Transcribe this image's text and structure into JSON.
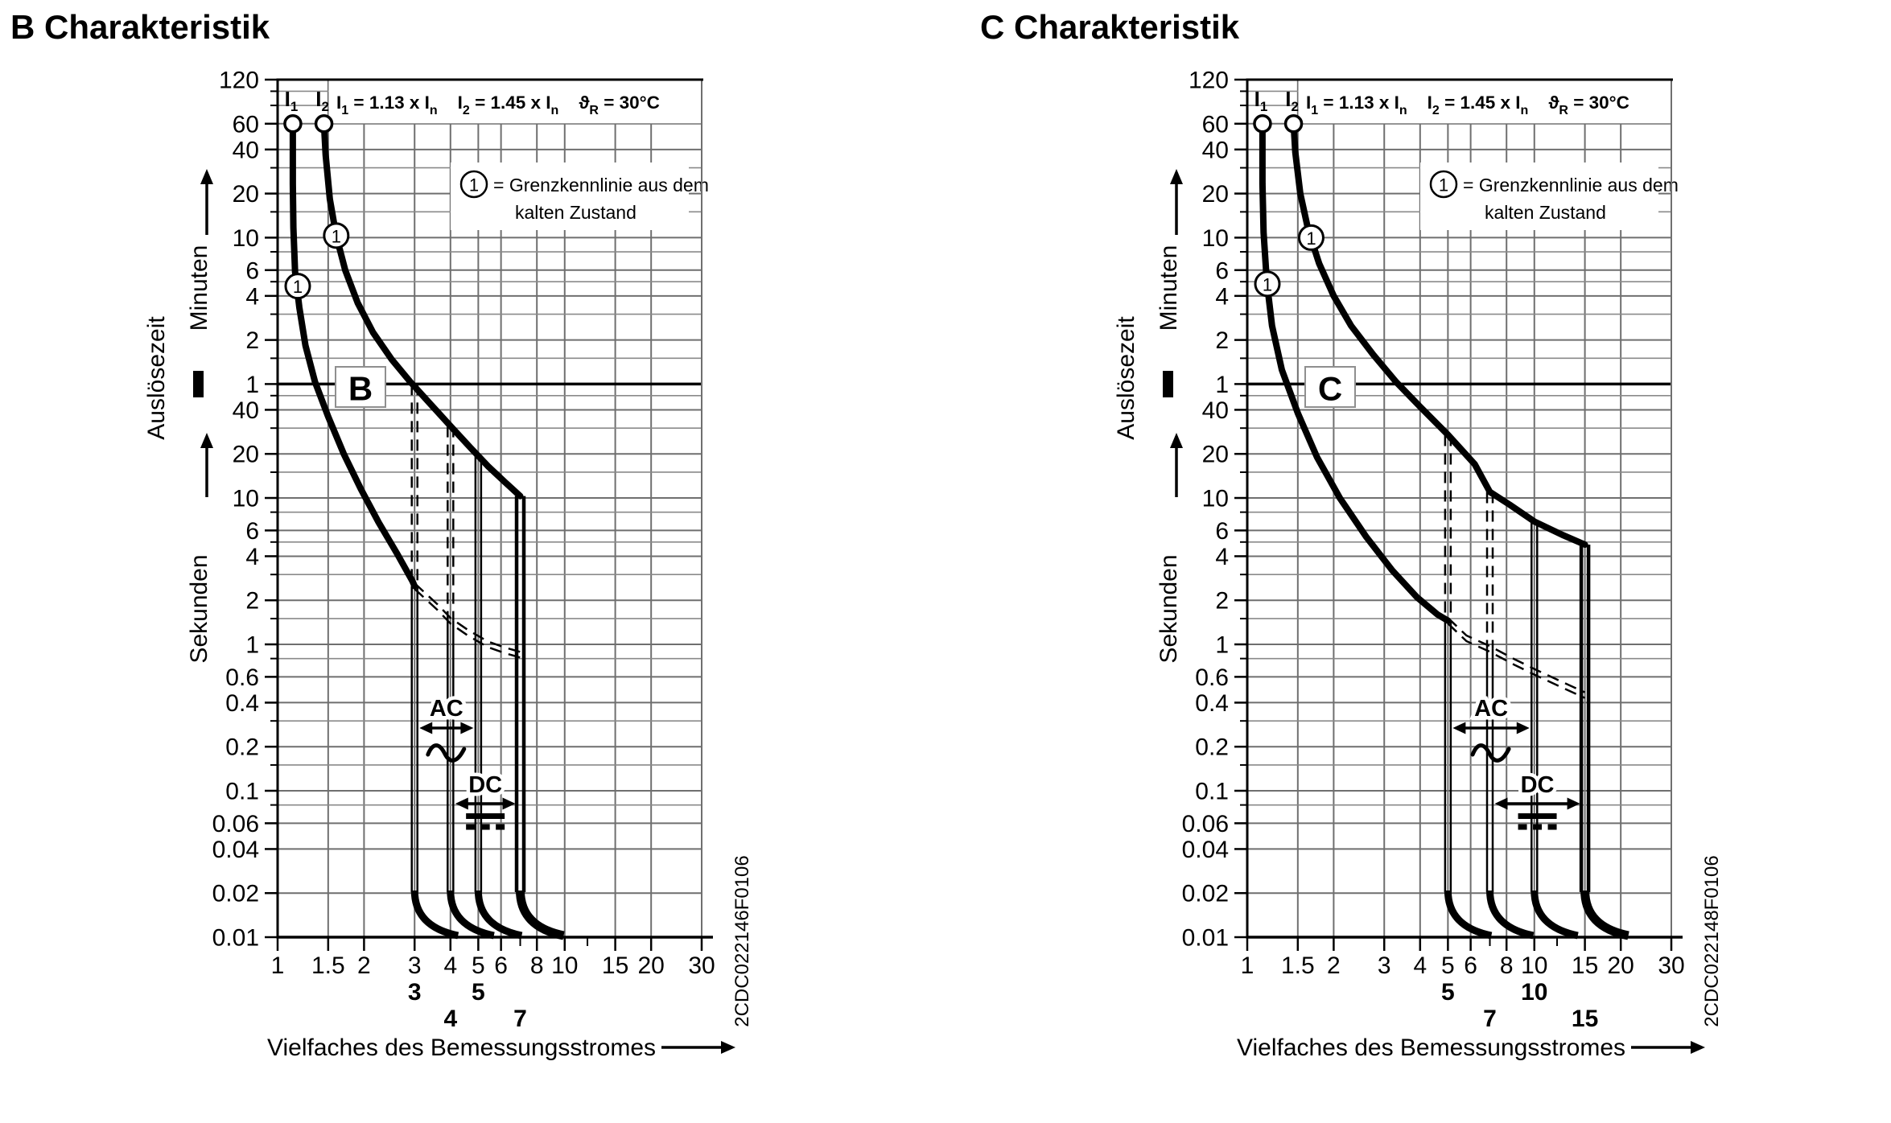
{
  "page": {
    "background": "#ffffff",
    "ink": "#000000",
    "grid_color": "#8a8a8a",
    "grid_major_color": "#6f6f6f",
    "box_border_color": "#8f8f8f"
  },
  "legend": {
    "marker": "1",
    "line1": "= Grenzkennlinie aus dem",
    "line2": "kalten Zustand"
  },
  "formula": {
    "segments": [
      {
        "t": "I"
      },
      {
        "t": "1",
        "sub": true
      },
      {
        "t": " = 1.13 x I"
      },
      {
        "t": "n",
        "sub": true
      },
      {
        "t": "    I"
      },
      {
        "t": "2",
        "sub": true
      },
      {
        "t": " = 1.45 x I"
      },
      {
        "t": "n",
        "sub": true
      },
      {
        "t": "    ϑ"
      },
      {
        "t": "R",
        "sub": true
      },
      {
        "t": " = 30°C"
      }
    ]
  },
  "axes": {
    "x_title": "Vielfaches des Bemessungsstromes",
    "y_title": "Auslösezeit",
    "y_unit_upper": "Minuten",
    "y_unit_lower": "Sekunden",
    "x_range": [
      1,
      30
    ],
    "t_range_seconds": [
      0.01,
      7200
    ],
    "x_ticks": [
      {
        "label": "1",
        "v": 1
      },
      {
        "label": "1.5",
        "v": 1.5
      },
      {
        "label": "2",
        "v": 2
      },
      {
        "label": "3",
        "v": 3
      },
      {
        "label": "4",
        "v": 4
      },
      {
        "label": "5",
        "v": 5
      },
      {
        "label": "6",
        "v": 6
      },
      {
        "label": "8",
        "v": 8
      },
      {
        "label": "10",
        "v": 10
      },
      {
        "label": "15",
        "v": 15
      },
      {
        "label": "20",
        "v": 20
      },
      {
        "label": "30",
        "v": 30
      }
    ],
    "x_minor_ticks": [
      7,
      12
    ],
    "y_minutes": [
      {
        "label": "120",
        "v": 120
      },
      {
        "label": "60",
        "v": 60
      },
      {
        "label": "40",
        "v": 40
      },
      {
        "label": "20",
        "v": 20
      },
      {
        "label": "10",
        "v": 10
      },
      {
        "label": "6",
        "v": 6
      },
      {
        "label": "4",
        "v": 4
      },
      {
        "label": "2",
        "v": 2
      },
      {
        "label": "1",
        "v": 1
      }
    ],
    "y_minutes_minor": [
      100,
      80,
      30,
      15,
      8,
      5,
      3,
      1.5
    ],
    "y_seconds": [
      {
        "label": "40",
        "v": 40
      },
      {
        "label": "20",
        "v": 20
      },
      {
        "label": "10",
        "v": 10
      },
      {
        "label": "6",
        "v": 6
      },
      {
        "label": "4",
        "v": 4
      },
      {
        "label": "2",
        "v": 2
      },
      {
        "label": "1",
        "v": 1
      },
      {
        "label": "0.6",
        "v": 0.6
      },
      {
        "label": "0.4",
        "v": 0.4
      },
      {
        "label": "0.2",
        "v": 0.2
      },
      {
        "label": "0.1",
        "v": 0.1
      },
      {
        "label": "0.06",
        "v": 0.06
      },
      {
        "label": "0.04",
        "v": 0.04
      },
      {
        "label": "0.02",
        "v": 0.02
      },
      {
        "label": "0.01",
        "v": 0.01
      }
    ],
    "y_seconds_minor": [
      50,
      30,
      15,
      8,
      5,
      3,
      1.5,
      0.8,
      0.3,
      0.15,
      0.08
    ]
  },
  "chart_data": [
    {
      "type": "line",
      "title": "B Charakteristik",
      "letter": "B",
      "figure_code": "2CDC022146F0106",
      "xlabel": "Vielfaches des Bemessungsstromes",
      "ylabel": "Auslösezeit",
      "curve_labels": [
        {
          "base": "I",
          "sub": "1",
          "x": 1.13
        },
        {
          "base": "I",
          "sub": "2",
          "x": 1.45
        }
      ],
      "series": [
        {
          "name": "i1_thermal_limit",
          "points": [
            [
              1.13,
              3600
            ],
            [
              1.13,
              1400
            ],
            [
              1.135,
              700
            ],
            [
              1.15,
              350
            ],
            [
              1.19,
              200
            ],
            [
              1.25,
              110
            ],
            [
              1.35,
              62
            ],
            [
              1.5,
              36
            ],
            [
              1.7,
              20
            ],
            [
              1.95,
              11.5
            ],
            [
              2.25,
              6.8
            ],
            [
              2.6,
              4.2
            ],
            [
              2.95,
              2.7
            ],
            [
              3.0,
              2.5
            ]
          ]
        },
        {
          "name": "i2_thermal_limit",
          "points": [
            [
              1.45,
              3600
            ],
            [
              1.47,
              2200
            ],
            [
              1.52,
              1100
            ],
            [
              1.6,
              620
            ],
            [
              1.72,
              360
            ],
            [
              1.9,
              215
            ],
            [
              2.15,
              135
            ],
            [
              2.5,
              88
            ],
            [
              2.9,
              62
            ],
            [
              3.4,
              44
            ],
            [
              4.0,
              31
            ],
            [
              4.7,
              22
            ],
            [
              5.4,
              16.5
            ],
            [
              6.2,
              12.8
            ],
            [
              7.0,
              10.3
            ]
          ]
        },
        {
          "name": "warm_state_dashed",
          "points": [
            [
              3.0,
              2.5
            ],
            [
              3.6,
              1.8
            ],
            [
              4.0,
              1.45
            ],
            [
              4.6,
              1.2
            ],
            [
              5.4,
              1.0
            ],
            [
              6.2,
              0.91
            ],
            [
              7.0,
              0.85
            ]
          ],
          "dashed": true
        }
      ],
      "instantaneous_verticals": [
        {
          "x": 3,
          "from_t": 60,
          "dash_to_t": 2.5
        },
        {
          "x": 4,
          "from_t": 31,
          "dash_to_t": 1.45
        },
        {
          "x": 5,
          "from_t": 19.5
        },
        {
          "x": 7,
          "from_t": 10.3,
          "thick": true
        }
      ],
      "cold_state_badges": [
        [
          1.175,
          280
        ],
        [
          1.6,
          620
        ]
      ],
      "trip_rows": [
        [
          {
            "label": "3",
            "x": 3
          },
          {
            "label": "5",
            "x": 5
          }
        ],
        [
          {
            "label": "4",
            "x": 4
          },
          {
            "label": "7",
            "x": 7
          }
        ]
      ],
      "ac": {
        "label": "AC",
        "from": 3,
        "to": 5
      },
      "dc": {
        "label": "DC",
        "from": 4,
        "to": 7
      }
    },
    {
      "type": "line",
      "title": "C Charakteristik",
      "letter": "C",
      "figure_code": "2CDC022148F0106",
      "xlabel": "Vielfaches des Bemessungsstromes",
      "ylabel": "Auslösezeit",
      "curve_labels": [
        {
          "base": "I",
          "sub": "1",
          "x": 1.13
        },
        {
          "base": "I",
          "sub": "2",
          "x": 1.45
        }
      ],
      "series": [
        {
          "name": "i1_thermal_limit",
          "points": [
            [
              1.13,
              3600
            ],
            [
              1.13,
              1400
            ],
            [
              1.14,
              650
            ],
            [
              1.17,
              300
            ],
            [
              1.22,
              150
            ],
            [
              1.32,
              75
            ],
            [
              1.5,
              38
            ],
            [
              1.75,
              19
            ],
            [
              2.1,
              10
            ],
            [
              2.6,
              5.4
            ],
            [
              3.2,
              3.2
            ],
            [
              3.9,
              2.1
            ],
            [
              4.6,
              1.6
            ],
            [
              5.0,
              1.45
            ]
          ]
        },
        {
          "name": "i2_thermal_limit",
          "points": [
            [
              1.45,
              3600
            ],
            [
              1.47,
              2300
            ],
            [
              1.53,
              1200
            ],
            [
              1.63,
              680
            ],
            [
              1.78,
              400
            ],
            [
              2.0,
              240
            ],
            [
              2.3,
              150
            ],
            [
              2.75,
              95
            ],
            [
              3.3,
              62
            ],
            [
              4.0,
              42
            ],
            [
              5.0,
              27
            ],
            [
              6.2,
              17
            ],
            [
              7.0,
              11
            ],
            [
              8.2,
              9
            ],
            [
              10.0,
              6.9
            ],
            [
              12.5,
              5.6
            ],
            [
              15.0,
              4.8
            ]
          ]
        },
        {
          "name": "warm_state_dashed",
          "points": [
            [
              5.0,
              1.45
            ],
            [
              5.8,
              1.1
            ],
            [
              7.0,
              0.93
            ],
            [
              8.5,
              0.76
            ],
            [
              10.0,
              0.65
            ],
            [
              12.0,
              0.55
            ],
            [
              15.0,
              0.45
            ]
          ],
          "dashed": true
        }
      ],
      "instantaneous_verticals": [
        {
          "x": 5,
          "from_t": 27,
          "dash_to_t": 1.45
        },
        {
          "x": 7,
          "from_t": 11,
          "dash_to_t": 0.93
        },
        {
          "x": 10,
          "from_t": 6.9
        },
        {
          "x": 15,
          "from_t": 4.8,
          "thick": true
        }
      ],
      "cold_state_badges": [
        [
          1.175,
          290
        ],
        [
          1.67,
          600
        ]
      ],
      "trip_rows": [
        [
          {
            "label": "5",
            "x": 5
          },
          {
            "label": "10",
            "x": 10
          }
        ],
        [
          {
            "label": "7",
            "x": 7
          },
          {
            "label": "15",
            "x": 15
          }
        ]
      ],
      "ac": {
        "label": "AC",
        "from": 5,
        "to": 10
      },
      "dc": {
        "label": "DC",
        "from": 7,
        "to": 15
      }
    }
  ]
}
